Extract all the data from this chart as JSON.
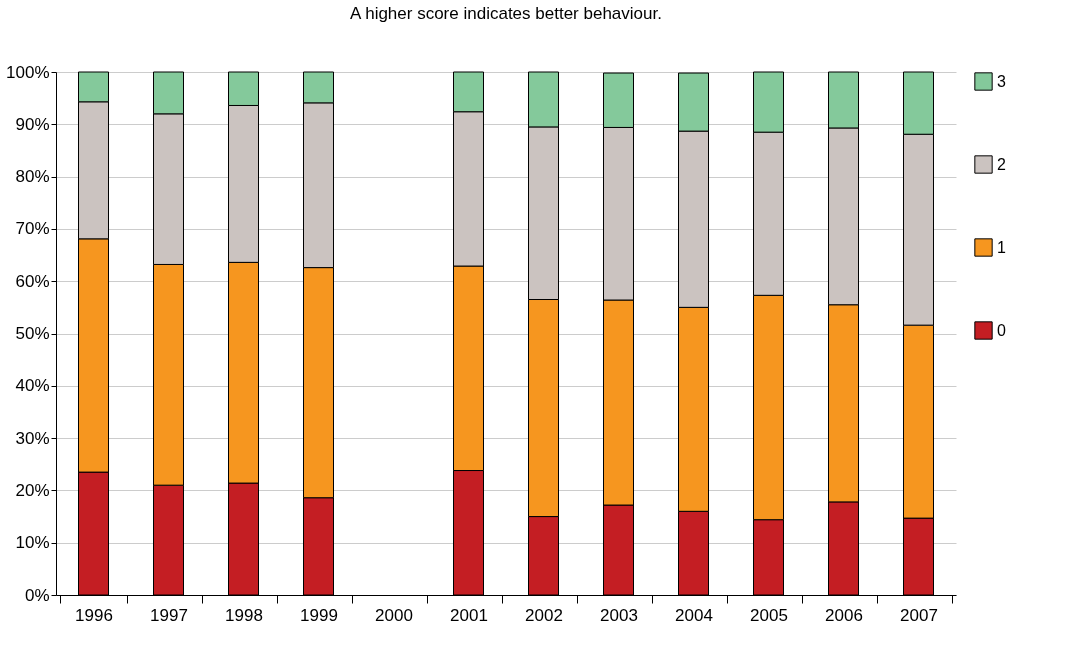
{
  "chart_data": {
    "type": "bar",
    "stacked": true,
    "title": "A higher score indicates better behaviour.",
    "categories": [
      "1996",
      "1997",
      "1998",
      "1999",
      "2000",
      "2001",
      "2002",
      "2003",
      "2004",
      "2005",
      "2006",
      "2007"
    ],
    "series": [
      {
        "name": "0",
        "color": "#c41e23",
        "values": [
          23.5,
          21.0,
          21.4,
          18.6,
          null,
          23.8,
          15.0,
          17.2,
          16.0,
          14.4,
          17.8,
          14.7
        ]
      },
      {
        "name": "1",
        "color": "#f6961f",
        "values": [
          44.6,
          42.2,
          42.2,
          44.0,
          null,
          39.1,
          41.5,
          39.2,
          39.0,
          42.9,
          37.7,
          36.9
        ]
      },
      {
        "name": "2",
        "color": "#cbc3c0",
        "values": [
          26.2,
          28.8,
          30.0,
          31.5,
          null,
          29.5,
          33.0,
          33.0,
          33.7,
          31.2,
          33.8,
          36.5
        ]
      },
      {
        "name": "3",
        "color": "#84c99b",
        "values": [
          5.7,
          8.0,
          6.4,
          5.9,
          null,
          7.6,
          10.5,
          10.4,
          11.1,
          11.5,
          10.7,
          11.9
        ]
      }
    ],
    "ylim": [
      0,
      100
    ],
    "yticks": [
      {
        "value": 0,
        "label": "0%"
      },
      {
        "value": 10,
        "label": "10%"
      },
      {
        "value": 20,
        "label": "20%"
      },
      {
        "value": 30,
        "label": "30%"
      },
      {
        "value": 40,
        "label": "40%"
      },
      {
        "value": 50,
        "label": "50%"
      },
      {
        "value": 60,
        "label": "60%"
      },
      {
        "value": 70,
        "label": "70%"
      },
      {
        "value": 80,
        "label": "80%"
      },
      {
        "value": 90,
        "label": "90%"
      },
      {
        "value": 100,
        "label": "100%"
      }
    ],
    "grid": "y",
    "legend": "right"
  }
}
